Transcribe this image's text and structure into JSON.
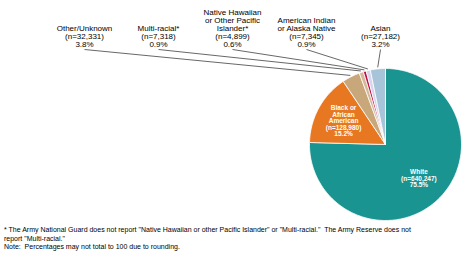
{
  "chart_data": {
    "type": "pie",
    "categories": [
      "White\n(n=640,247)\n75.5%",
      "Black or\nAfrican\nAmerican\n(n=128,980)\n15.2%",
      "Other/Unknown\n(n=32,331)\n3.8%",
      "Multi-racial*\n(n=7,318)\n0.9%",
      "Native Hawaiian\nor Other Pacific\nIslander*\n(n=4,899)\n0.6%",
      "American Indian\nor Alaska Native\n(n=7,345)\n0.9%",
      "Asian\n(n=27,182)\n3.2%"
    ],
    "values": [
      75.5,
      15.2,
      3.8,
      0.9,
      0.6,
      0.9,
      3.2
    ],
    "colors": [
      "#1a9490",
      "#e87722",
      "#c8a87a",
      "#d4b89a",
      "#bb1144",
      "#d8d4ee",
      "#a8c4d8"
    ],
    "annotations": [
      "* The Army National Guard does not report \"Native Hawaiian or other Pacific Islander\" or \"Multi-racial.\"  The Army Reserve does not",
      "report \"Multi-racial.\"",
      "Note:  Percentages may not total to 100 due to rounding."
    ]
  }
}
